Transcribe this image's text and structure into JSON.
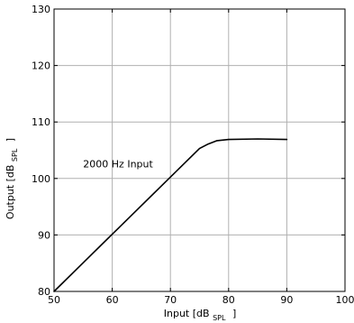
{
  "chart_data": {
    "type": "line",
    "title": "",
    "xlabel": "Input [dB SPL ]",
    "xlabel_main": "Input [dB",
    "xlabel_sub": "SPL",
    "xlabel_end": "]",
    "ylabel": "Output [dB SPL ]",
    "ylabel_main": "Output [dB",
    "ylabel_sub": "SPL",
    "ylabel_end": "]",
    "xlim": [
      50,
      100
    ],
    "ylim": [
      80,
      130
    ],
    "x_ticks": [
      50,
      60,
      70,
      80,
      90,
      100
    ],
    "y_ticks": [
      80,
      90,
      100,
      110,
      120,
      130
    ],
    "x_tick_labels": [
      "50",
      "60",
      "70",
      "80",
      "90",
      "100"
    ],
    "y_tick_labels": [
      "80",
      "90",
      "100",
      "110",
      "120",
      "130"
    ],
    "grid": true,
    "annotations": [
      {
        "text": "2000 Hz Input",
        "x": 55,
        "y": 102
      }
    ],
    "series": [
      {
        "color": "#000000",
        "x": [
          50,
          75,
          76.5,
          78,
          80,
          85,
          90
        ],
        "y": [
          80,
          105.3,
          106.1,
          106.7,
          106.9,
          107.0,
          106.9
        ]
      }
    ]
  }
}
